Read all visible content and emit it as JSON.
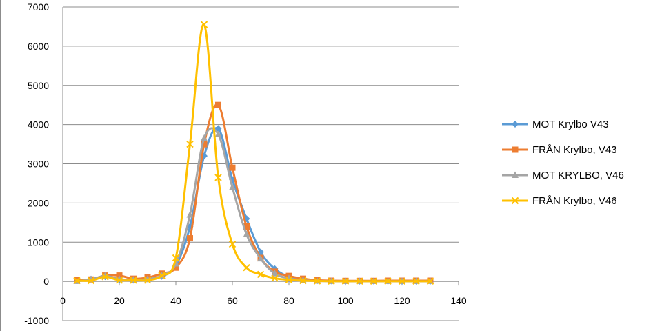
{
  "chart_data": {
    "type": "line",
    "title": "",
    "xlabel": "",
    "ylabel": "",
    "xlim": [
      0,
      140
    ],
    "ylim": [
      -1000,
      7000
    ],
    "x_ticks": [
      0,
      20,
      40,
      60,
      80,
      100,
      120,
      140
    ],
    "y_ticks": [
      -1000,
      0,
      1000,
      2000,
      3000,
      4000,
      5000,
      6000,
      7000
    ],
    "grid": "horizontal",
    "legend_position": "right",
    "x": [
      5,
      10,
      15,
      20,
      25,
      30,
      35,
      40,
      45,
      50,
      55,
      60,
      65,
      70,
      75,
      80,
      85,
      90,
      95,
      100,
      105,
      110,
      115,
      120,
      125,
      130
    ],
    "series": [
      {
        "name": "MOT Krylbo V43",
        "color": "#5b9bd5",
        "marker": "diamond",
        "values": [
          10,
          60,
          120,
          40,
          30,
          60,
          130,
          400,
          1400,
          3200,
          3900,
          2600,
          1600,
          750,
          320,
          120,
          40,
          15,
          10,
          5,
          5,
          5,
          5,
          5,
          5,
          5
        ]
      },
      {
        "name": "FRÅN Krylbo, V43",
        "color": "#ed7d31",
        "marker": "square",
        "values": [
          30,
          50,
          150,
          150,
          70,
          100,
          200,
          350,
          1100,
          3500,
          4500,
          2900,
          1400,
          600,
          250,
          140,
          70,
          30,
          20,
          15,
          15,
          15,
          20,
          20,
          20,
          20
        ]
      },
      {
        "name": "MOT KRYLBO, V46",
        "color": "#a5a5a5",
        "marker": "triangle",
        "values": [
          5,
          50,
          140,
          60,
          40,
          60,
          150,
          450,
          1700,
          3650,
          3750,
          2400,
          1200,
          580,
          200,
          80,
          30,
          10,
          5,
          5,
          5,
          5,
          5,
          5,
          5,
          5
        ]
      },
      {
        "name": "FRÅN Krylbo, V46",
        "color": "#ffc000",
        "marker": "x",
        "values": [
          20,
          20,
          120,
          30,
          30,
          30,
          150,
          600,
          3500,
          6550,
          2650,
          950,
          350,
          180,
          80,
          40,
          20,
          10,
          5,
          5,
          5,
          5,
          5,
          5,
          5,
          5
        ]
      }
    ]
  }
}
